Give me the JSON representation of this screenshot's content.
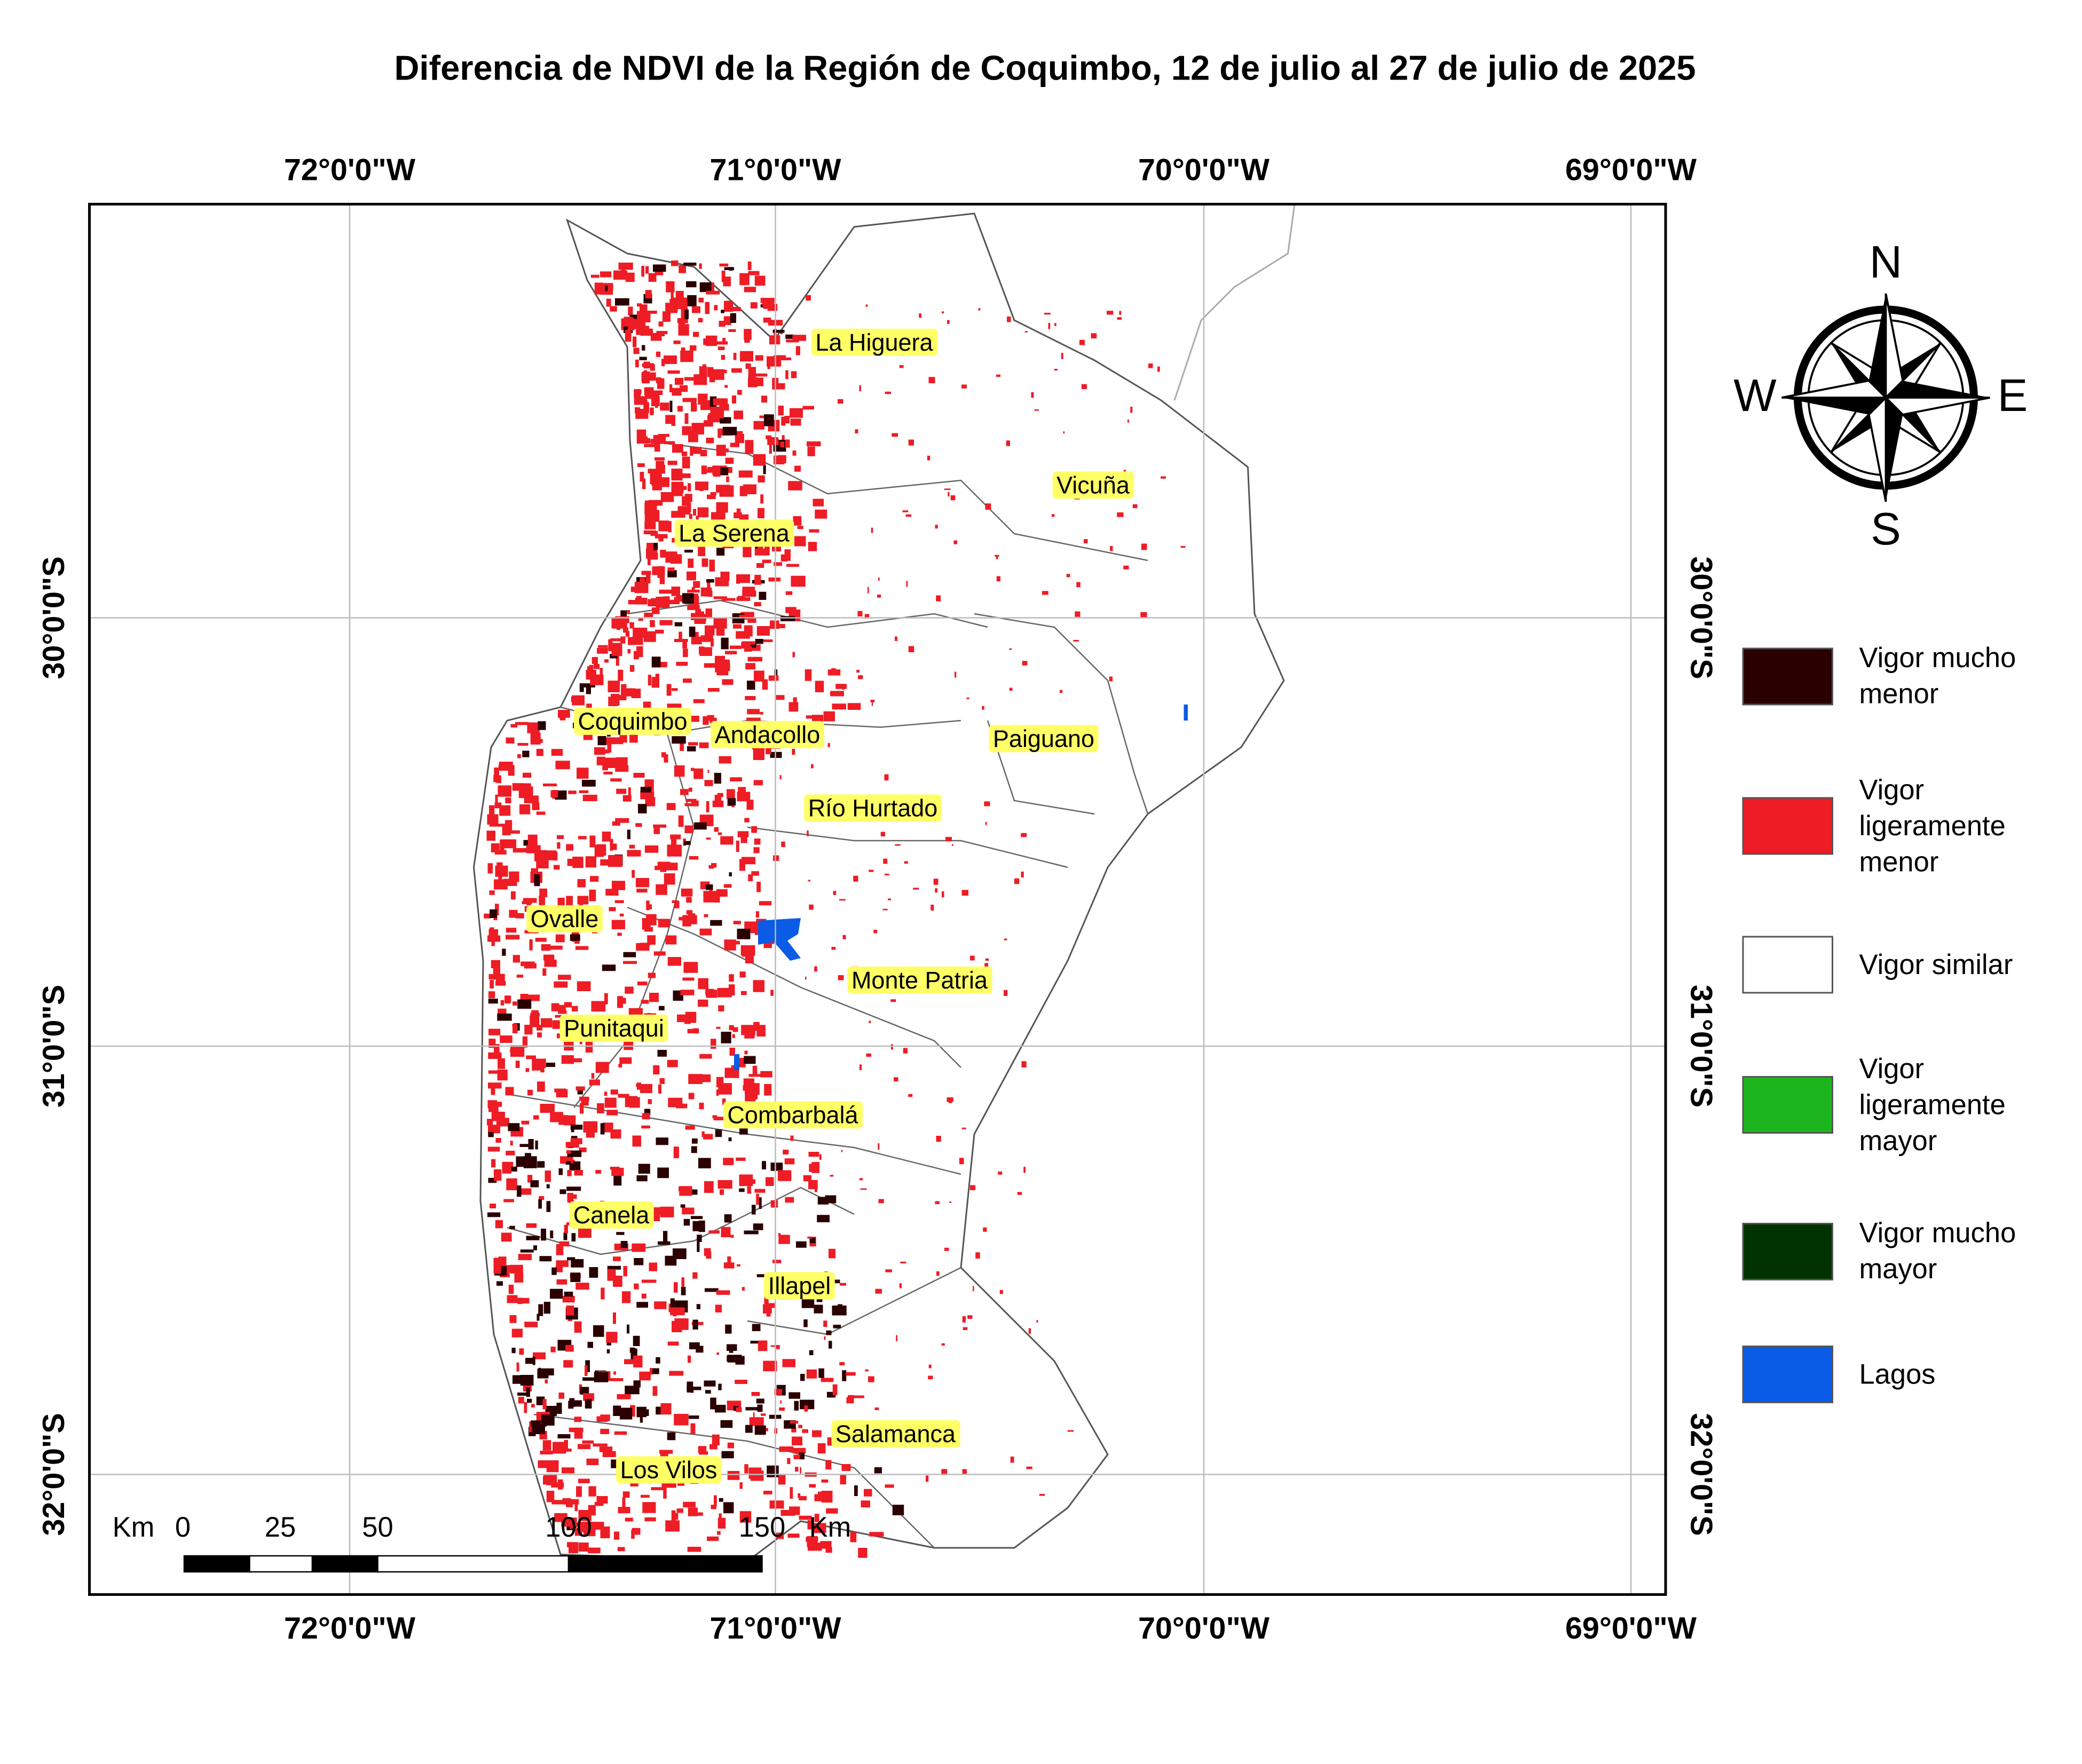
{
  "title": "Diferencia de NDVI de la Región de Coquimbo, 12 de julio al 27 de julio de 2025",
  "grid": {
    "lon_labels": [
      "72°0'0\"W",
      "71°0'0\"W",
      "70°0'0\"W",
      "69°0'0\"W"
    ],
    "lat_labels": [
      "30°0'0\"S",
      "31°0'0\"S",
      "32°0'0\"S"
    ]
  },
  "communes": [
    "La Higuera",
    "Vicuña",
    "La Serena",
    "Coquimbo",
    "Andacollo",
    "Paiguano",
    "Río Hurtado",
    "Ovalle",
    "Monte Patria",
    "Punitaqui",
    "Combarbalá",
    "Canela",
    "Illapel",
    "Salamanca",
    "Los Vilos"
  ],
  "compass": {
    "north": "N",
    "west": "W",
    "east": "E",
    "south": "S"
  },
  "scale_bar": {
    "unit": "Km",
    "labels": [
      "0",
      "25",
      "50",
      "100",
      "150"
    ]
  },
  "legend": [
    {
      "label": "Vigor mucho menor",
      "color": "#2a0000"
    },
    {
      "label": "Vigor ligeramente menor",
      "color": "#ee1c25"
    },
    {
      "label": "Vigor similar",
      "color": "#ffffff"
    },
    {
      "label": "Vigor ligeramente mayor",
      "color": "#1db51d"
    },
    {
      "label": "Vigor mucho mayor",
      "color": "#003300"
    },
    {
      "label": "Lagos",
      "color": "#0a5ce6"
    }
  ]
}
